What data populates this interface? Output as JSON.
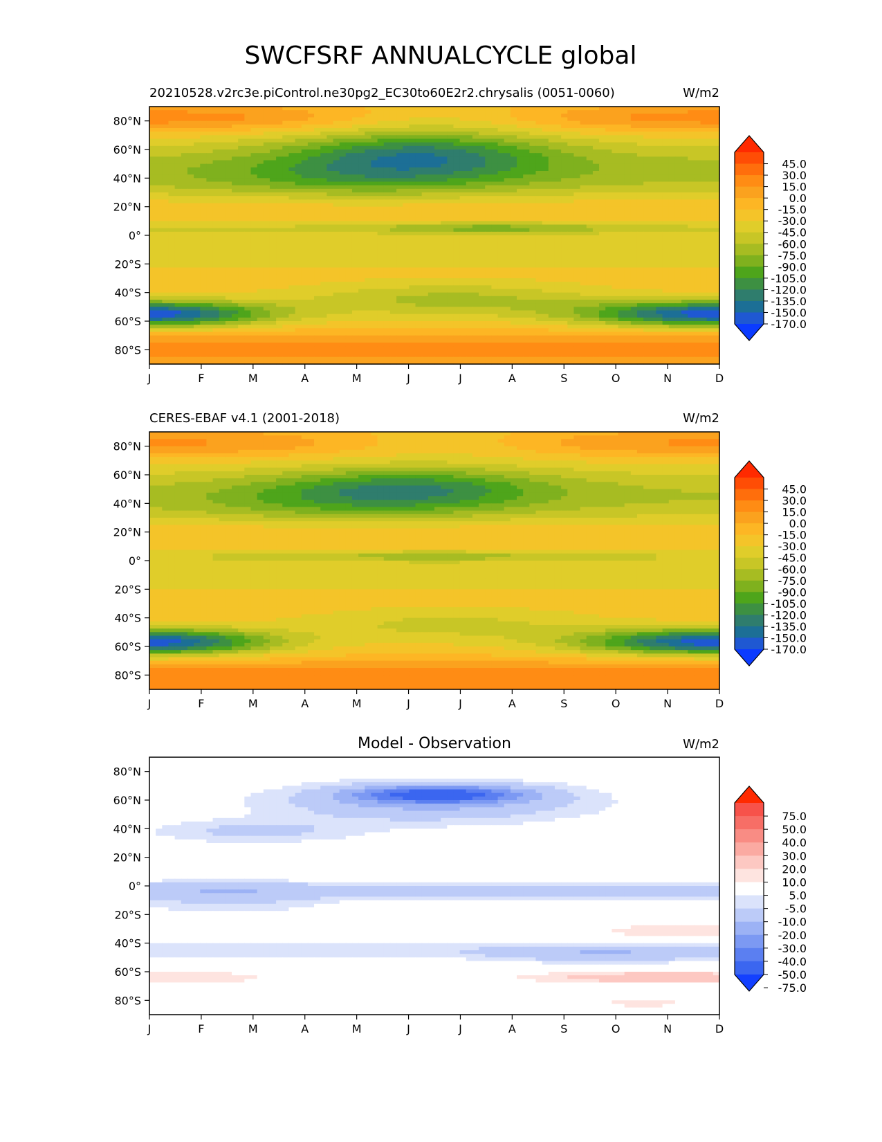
{
  "figure": {
    "title": "SWCFSRF ANNUALCYCLE global"
  },
  "chart_data": [
    {
      "type": "heatmap",
      "subtitle_left": "20210528.v2rc3e.piControl.ne30pg2_EC30to60E2r2.chrysalis (0051-0060)",
      "subtitle_center": "",
      "units": "W/m2",
      "x_ticks": [
        "J",
        "F",
        "M",
        "A",
        "M",
        "J",
        "J",
        "A",
        "S",
        "O",
        "N",
        "D"
      ],
      "y_ticks": [
        "80°N",
        "60°N",
        "40°N",
        "20°N",
        "0°",
        "20°S",
        "40°S",
        "60°S",
        "80°S"
      ],
      "y_tick_values": [
        80,
        60,
        40,
        20,
        0,
        -20,
        -40,
        -60,
        -80
      ],
      "ylim": [
        -90,
        90
      ],
      "xlim": [
        0,
        11
      ],
      "colorbar": {
        "labels": [
          "45.0",
          "30.0",
          "15.0",
          "0.0",
          "-15.0",
          "-30.0",
          "-45.0",
          "-60.0",
          "-75.0",
          "-90.0",
          "-105.0",
          "-120.0",
          "-135.0",
          "-150.0",
          "-170.0"
        ],
        "colors": [
          "#ff2a00",
          "#ff4d05",
          "#ff6e0c",
          "#ff8c14",
          "#fba21e",
          "#fdb624",
          "#f4c429",
          "#e0cd2a",
          "#c8c626",
          "#a7bc22",
          "#7fb11e",
          "#4ea51b",
          "#3d9042",
          "#2f7d6d",
          "#1c6f96",
          "#1f58d2",
          "#0b3bff"
        ],
        "extend": "both"
      }
    },
    {
      "type": "heatmap",
      "subtitle_left": "CERES-EBAF v4.1 (2001-2018)",
      "subtitle_center": "",
      "units": "W/m2",
      "x_ticks": [
        "J",
        "F",
        "M",
        "A",
        "M",
        "J",
        "J",
        "A",
        "S",
        "O",
        "N",
        "D"
      ],
      "y_ticks": [
        "80°N",
        "60°N",
        "40°N",
        "20°N",
        "0°",
        "20°S",
        "40°S",
        "60°S",
        "80°S"
      ],
      "y_tick_values": [
        80,
        60,
        40,
        20,
        0,
        -20,
        -40,
        -60,
        -80
      ],
      "ylim": [
        -90,
        90
      ],
      "xlim": [
        0,
        11
      ],
      "colorbar": {
        "labels": [
          "45.0",
          "30.0",
          "15.0",
          "0.0",
          "-15.0",
          "-30.0",
          "-45.0",
          "-60.0",
          "-75.0",
          "-90.0",
          "-105.0",
          "-120.0",
          "-135.0",
          "-150.0",
          "-170.0"
        ],
        "colors": [
          "#ff2a00",
          "#ff4d05",
          "#ff6e0c",
          "#ff8c14",
          "#fba21e",
          "#fdb624",
          "#f4c429",
          "#e0cd2a",
          "#c8c626",
          "#a7bc22",
          "#7fb11e",
          "#4ea51b",
          "#3d9042",
          "#2f7d6d",
          "#1c6f96",
          "#1f58d2",
          "#0b3bff"
        ],
        "extend": "both"
      }
    },
    {
      "type": "heatmap",
      "subtitle_left": "",
      "subtitle_center": "Model - Observation",
      "units": "W/m2",
      "x_ticks": [
        "J",
        "F",
        "M",
        "A",
        "M",
        "J",
        "J",
        "A",
        "S",
        "O",
        "N",
        "D"
      ],
      "y_ticks": [
        "80°N",
        "60°N",
        "40°N",
        "20°N",
        "0°",
        "20°S",
        "40°S",
        "60°S",
        "80°S"
      ],
      "y_tick_values": [
        80,
        60,
        40,
        20,
        0,
        -20,
        -40,
        -60,
        -80
      ],
      "ylim": [
        -90,
        90
      ],
      "xlim": [
        0,
        11
      ],
      "colorbar": {
        "labels": [
          "75.0",
          "50.0",
          "40.0",
          "30.0",
          "20.0",
          "10.0",
          "5.0",
          "-5.0",
          "-10.0",
          "-20.0",
          "-30.0",
          "-40.0",
          "-50.0",
          "-75.0"
        ],
        "colors": [
          "#ff2a00",
          "#f7524a",
          "#f76e66",
          "#f98c84",
          "#fbaaa2",
          "#fdc8c2",
          "#fee4e0",
          "#ffffff",
          "#dbe3fb",
          "#bccbf8",
          "#9cb2f5",
          "#7c99f3",
          "#5b7ff1",
          "#3b66f0",
          "#1340ff"
        ],
        "extend": "both"
      }
    }
  ]
}
